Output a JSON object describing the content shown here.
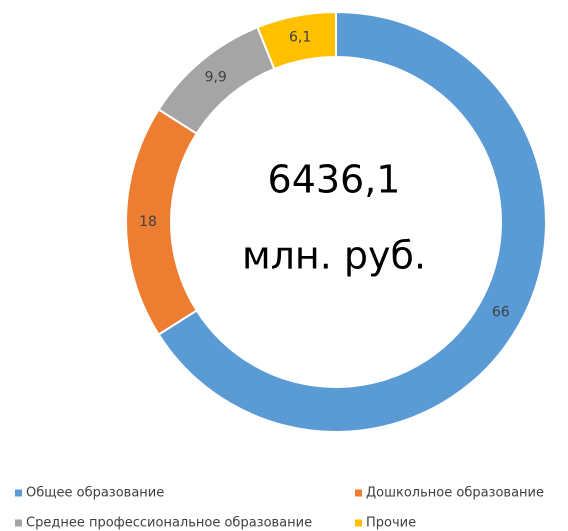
{
  "chart_data": {
    "type": "donut",
    "annotations": [
      "6436,1",
      "млн. руб."
    ],
    "categories": [
      "Общее образование",
      "Дошкольное образование",
      "Среднее профессиональное образование",
      "Прочие"
    ],
    "values": [
      66,
      18,
      9.9,
      6.1
    ],
    "value_labels": [
      "66",
      "18",
      "9,9",
      "6,1"
    ],
    "colors": [
      "#5b9bd5",
      "#ed7d31",
      "#a5a5a5",
      "#ffc000"
    ],
    "legend": "bottom"
  }
}
